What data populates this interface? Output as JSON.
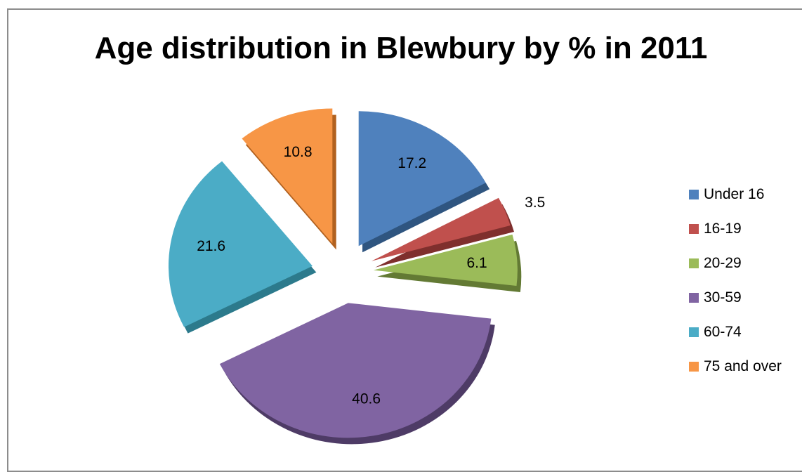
{
  "chart_data": {
    "type": "pie",
    "title": "Age distribution in Blewbury by % in 2011",
    "categories": [
      "Under 16",
      "16-19",
      "20-29",
      "30-59",
      "60-74",
      "75 and over"
    ],
    "values": [
      17.2,
      3.5,
      6.1,
      40.6,
      21.6,
      10.8
    ],
    "value_labels": [
      "17.2",
      "3.5",
      "6.1",
      "40.6",
      "21.6",
      "10.8"
    ],
    "colors": [
      "#4f81bd",
      "#c0504d",
      "#9bbb59",
      "#8064a2",
      "#4bacc6",
      "#f79646"
    ],
    "dark_colors": [
      "#2f5580",
      "#7f2f2d",
      "#637a34",
      "#4e3b66",
      "#2c7a8c",
      "#b1611f"
    ],
    "exploded": true,
    "style": "3d",
    "legend_position": "right"
  }
}
